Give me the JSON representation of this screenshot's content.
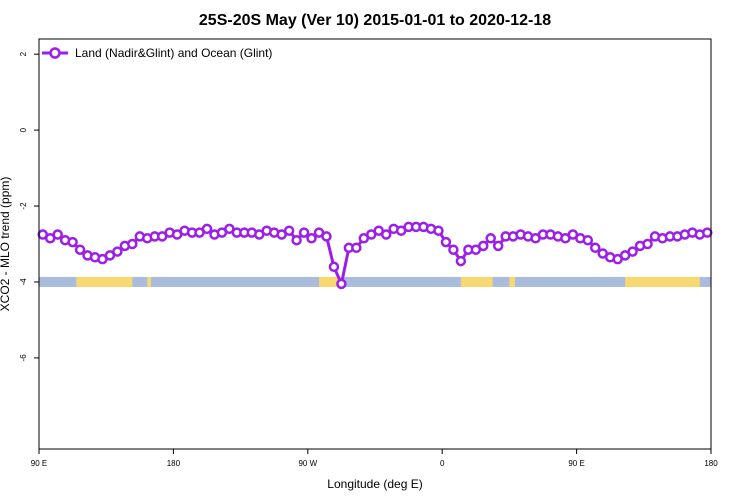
{
  "chart_data": {
    "type": "line",
    "title": "25S-20S May (Ver 10)   2015-01-01 to 2020-12-18",
    "xlabel": "Longitude (deg E)",
    "ylabel": "XCO2 - MLO trend (ppm)",
    "xlim": [
      90,
      450
    ],
    "ylim": [
      -8.4,
      2.4
    ],
    "x_ticks": [
      {
        "value": 90,
        "label": "90 E"
      },
      {
        "value": 162,
        "label": "180"
      },
      {
        "value": 234,
        "label": "90 W"
      },
      {
        "value": 306,
        "label": "0"
      },
      {
        "value": 378,
        "label": "90 E"
      },
      {
        "value": 450,
        "label": "180"
      }
    ],
    "y_ticks": [
      {
        "value": 2,
        "label": "2"
      },
      {
        "value": 0,
        "label": "0"
      },
      {
        "value": -2,
        "label": "-2"
      },
      {
        "value": -4,
        "label": "-4"
      },
      {
        "value": -6,
        "label": "-6"
      }
    ],
    "legend": {
      "position": "top-left"
    },
    "series": [
      {
        "name": "Land (Nadir&Glint) and Ocean (Glint)",
        "color": "#9b1fe8",
        "x": [
          92,
          96,
          100,
          104,
          108,
          112,
          116,
          120,
          124,
          128,
          132,
          136,
          140,
          144,
          148,
          152,
          156,
          160,
          164,
          168,
          172,
          176,
          180,
          184,
          188,
          192,
          196,
          200,
          204,
          208,
          212,
          216,
          220,
          224,
          228,
          232,
          236,
          240,
          244,
          248,
          252,
          256,
          260,
          264,
          268,
          272,
          276,
          280,
          284,
          288,
          292,
          296,
          300,
          304,
          308,
          312,
          316,
          320,
          324,
          328,
          332,
          336,
          340,
          344,
          348,
          352,
          356,
          360,
          364,
          368,
          372,
          376,
          380,
          384,
          388,
          392,
          396,
          400,
          404,
          408,
          412,
          416,
          420,
          424,
          428,
          432,
          436,
          440,
          444,
          448
        ],
        "y": [
          -2.75,
          -2.85,
          -2.75,
          -2.9,
          -2.95,
          -3.15,
          -3.3,
          -3.35,
          -3.4,
          -3.3,
          -3.2,
          -3.05,
          -3.0,
          -2.8,
          -2.85,
          -2.8,
          -2.8,
          -2.7,
          -2.75,
          -2.65,
          -2.7,
          -2.7,
          -2.6,
          -2.75,
          -2.7,
          -2.6,
          -2.7,
          -2.7,
          -2.7,
          -2.75,
          -2.65,
          -2.7,
          -2.75,
          -2.65,
          -2.9,
          -2.7,
          -2.85,
          -2.7,
          -2.8,
          -3.6,
          -4.05,
          -3.1,
          -3.1,
          -2.85,
          -2.75,
          -2.65,
          -2.75,
          -2.6,
          -2.65,
          -2.55,
          -2.55,
          -2.55,
          -2.6,
          -2.65,
          -2.95,
          -3.15,
          -3.45,
          -3.15,
          -3.15,
          -3.05,
          -2.85,
          -3.05,
          -2.8,
          -2.8,
          -2.75,
          -2.8,
          -2.85,
          -2.75,
          -2.75,
          -2.8,
          -2.85,
          -2.75,
          -2.85,
          -2.9,
          -3.1,
          -3.25,
          -3.35,
          -3.4,
          -3.3,
          -3.2,
          -3.05,
          -3.0,
          -2.8,
          -2.85,
          -2.8,
          -2.8,
          -2.75,
          -2.7,
          -2.75,
          -2.7
        ]
      }
    ],
    "surface_strip": {
      "y": -4,
      "ocean_color": "#a9bcde",
      "land_color": "#f8d870",
      "land_segments": [
        [
          110,
          140
        ],
        [
          148,
          150
        ],
        [
          240,
          253
        ],
        [
          316,
          333
        ],
        [
          342,
          345
        ],
        [
          404,
          444
        ]
      ]
    }
  }
}
